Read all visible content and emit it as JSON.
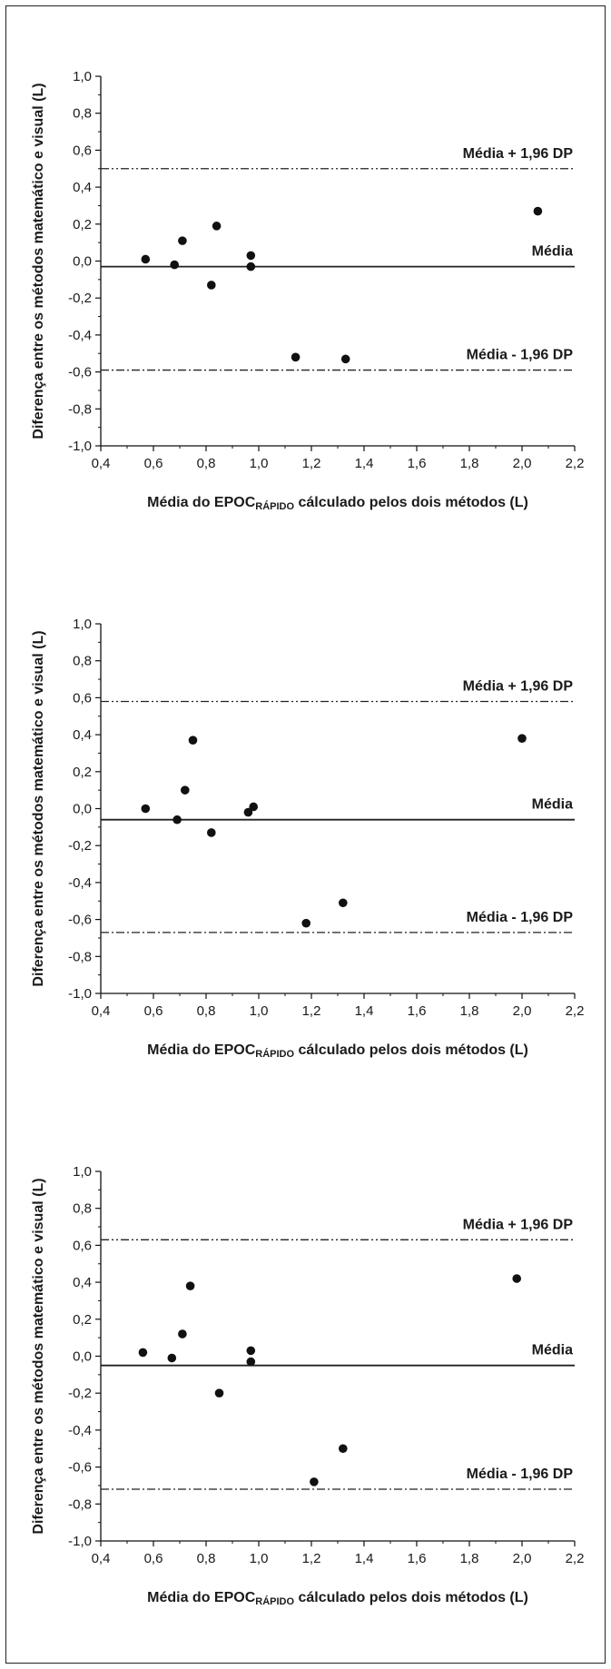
{
  "chart_data": [
    {
      "type": "scatter",
      "title": "",
      "xlabel": "Média do EPOC",
      "xlabel_sub": "RÁPIDO",
      "xlabel_rest": " cálculado pelos dois métodos (L)",
      "ylabel": "Diferença entre os métodos matemático e visual (L)",
      "xlim": [
        0.4,
        2.2
      ],
      "ylim": [
        -1.0,
        1.0
      ],
      "xticks": [
        "0,4",
        "0,6",
        "0,8",
        "1,0",
        "1,2",
        "1,4",
        "1,6",
        "1,8",
        "2,0",
        "2,2"
      ],
      "yticks": [
        "1,0",
        "0,8",
        "0,6",
        "0,4",
        "0,2",
        "0,0",
        "-0,2",
        "-0,4",
        "-0,6",
        "-0,8",
        "-1,0"
      ],
      "reference_lines": [
        {
          "label": "Média + 1,96 DP",
          "value": 0.5,
          "style": "dash-dot-dot"
        },
        {
          "label": "Média",
          "value": -0.03,
          "style": "solid"
        },
        {
          "label": "Média - 1,96 DP",
          "value": -0.59,
          "style": "dash-dot"
        }
      ],
      "points": [
        {
          "x": 0.57,
          "y": 0.01
        },
        {
          "x": 0.68,
          "y": -0.02
        },
        {
          "x": 0.71,
          "y": 0.11
        },
        {
          "x": 0.82,
          "y": -0.13
        },
        {
          "x": 0.84,
          "y": 0.19
        },
        {
          "x": 0.97,
          "y": 0.03
        },
        {
          "x": 0.97,
          "y": -0.03
        },
        {
          "x": 1.14,
          "y": -0.52
        },
        {
          "x": 1.33,
          "y": -0.53
        },
        {
          "x": 2.06,
          "y": 0.27
        }
      ]
    },
    {
      "type": "scatter",
      "title": "",
      "xlabel": "Média do EPOC",
      "xlabel_sub": "RÁPIDO",
      "xlabel_rest": " cálculado pelos dois métodos (L)",
      "ylabel": "Diferença entre os métodos matemático e visual (L)",
      "xlim": [
        0.4,
        2.2
      ],
      "ylim": [
        -1.0,
        1.0
      ],
      "xticks": [
        "0,4",
        "0,6",
        "0,8",
        "1,0",
        "1,2",
        "1,4",
        "1,6",
        "1,8",
        "2,0",
        "2,2"
      ],
      "yticks": [
        "1,0",
        "0,8",
        "0,6",
        "0,4",
        "0,2",
        "0,0",
        "-0,2",
        "-0,4",
        "-0,6",
        "-0,8",
        "-1,0"
      ],
      "reference_lines": [
        {
          "label": "Média + 1,96 DP",
          "value": 0.58,
          "style": "dash-dot-dot"
        },
        {
          "label": "Média",
          "value": -0.06,
          "style": "solid"
        },
        {
          "label": "Média - 1,96 DP",
          "value": -0.67,
          "style": "dash-dot"
        }
      ],
      "points": [
        {
          "x": 0.57,
          "y": 0.0
        },
        {
          "x": 0.69,
          "y": -0.06
        },
        {
          "x": 0.72,
          "y": 0.1
        },
        {
          "x": 0.75,
          "y": 0.37
        },
        {
          "x": 0.82,
          "y": -0.13
        },
        {
          "x": 0.96,
          "y": -0.02
        },
        {
          "x": 0.98,
          "y": 0.01
        },
        {
          "x": 1.18,
          "y": -0.62
        },
        {
          "x": 1.32,
          "y": -0.51
        },
        {
          "x": 2.0,
          "y": 0.38
        }
      ]
    },
    {
      "type": "scatter",
      "title": "",
      "xlabel": "Média do EPOC",
      "xlabel_sub": "RÁPIDO",
      "xlabel_rest": " cálculado pelos dois métodos (L)",
      "ylabel": "Diferença entre os métodos matemático e visual (L)",
      "xlim": [
        0.4,
        2.2
      ],
      "ylim": [
        -1.0,
        1.0
      ],
      "xticks": [
        "0,4",
        "0,6",
        "0,8",
        "1,0",
        "1,2",
        "1,4",
        "1,6",
        "1,8",
        "2,0",
        "2,2"
      ],
      "yticks": [
        "1,0",
        "0,8",
        "0,6",
        "0,4",
        "0,2",
        "0,0",
        "-0,2",
        "-0,4",
        "-0,6",
        "-0,8",
        "-1,0"
      ],
      "reference_lines": [
        {
          "label": "Média + 1,96 DP",
          "value": 0.63,
          "style": "dash-dot-dot"
        },
        {
          "label": "Média",
          "value": -0.05,
          "style": "solid"
        },
        {
          "label": "Média - 1,96 DP",
          "value": -0.72,
          "style": "dash-dot"
        }
      ],
      "points": [
        {
          "x": 0.56,
          "y": 0.02
        },
        {
          "x": 0.67,
          "y": -0.01
        },
        {
          "x": 0.71,
          "y": 0.12
        },
        {
          "x": 0.74,
          "y": 0.38
        },
        {
          "x": 0.85,
          "y": -0.2
        },
        {
          "x": 0.97,
          "y": 0.03
        },
        {
          "x": 0.97,
          "y": -0.03
        },
        {
          "x": 1.21,
          "y": -0.68
        },
        {
          "x": 1.32,
          "y": -0.5
        },
        {
          "x": 1.98,
          "y": 0.42
        }
      ]
    }
  ]
}
